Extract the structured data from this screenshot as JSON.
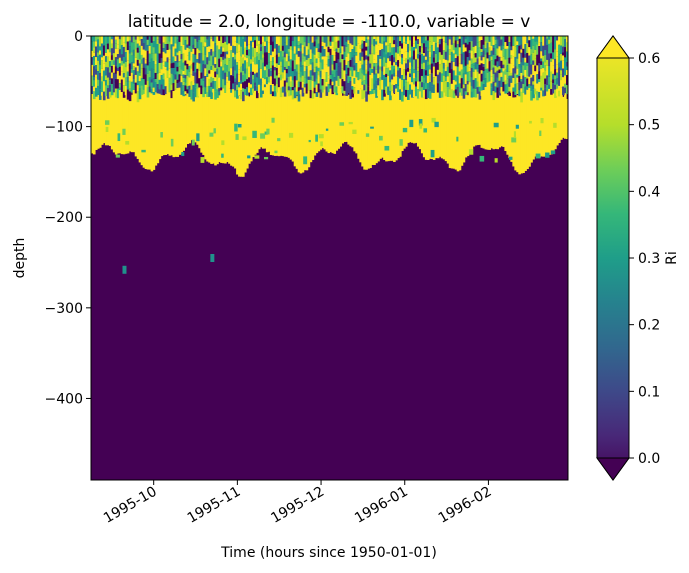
{
  "chart_data": {
    "type": "heatmap",
    "title": "latitude = 2.0, longitude = -110.0, variable = v",
    "xlabel": "Time (hours since 1950-01-01)",
    "ylabel": "depth",
    "x_ticks": [
      "1995-10",
      "1995-11",
      "1995-12",
      "1996-01",
      "1996-02"
    ],
    "y_ticks": [
      "0",
      "−100",
      "−200",
      "−300",
      "−400"
    ],
    "y_tick_values": [
      0,
      -100,
      -200,
      -300,
      -400
    ],
    "ylim": [
      -490,
      0
    ],
    "xlim_months": [
      0,
      5.7
    ],
    "colorbar": {
      "label": "Ri",
      "ticks": [
        "0.0",
        "0.1",
        "0.2",
        "0.3",
        "0.4",
        "0.5",
        "0.6"
      ],
      "tick_values": [
        0.0,
        0.1,
        0.2,
        0.3,
        0.4,
        0.5,
        0.6
      ],
      "range": [
        0.0,
        0.6
      ],
      "extend": "both",
      "colormap": "viridis"
    },
    "colors": {
      "low": "#440154",
      "high": "#fde725",
      "mid": "#21918c"
    },
    "regions": {
      "high_band_top_depth": -40,
      "high_band_bottom_depth_range": [
        -160,
        -115
      ],
      "mixed_near_surface_depth_range": [
        -60,
        0
      ],
      "isolated_patches": [
        {
          "time_months": 0.4,
          "depth": -258
        },
        {
          "time_months": 1.45,
          "depth": -245
        }
      ]
    }
  }
}
